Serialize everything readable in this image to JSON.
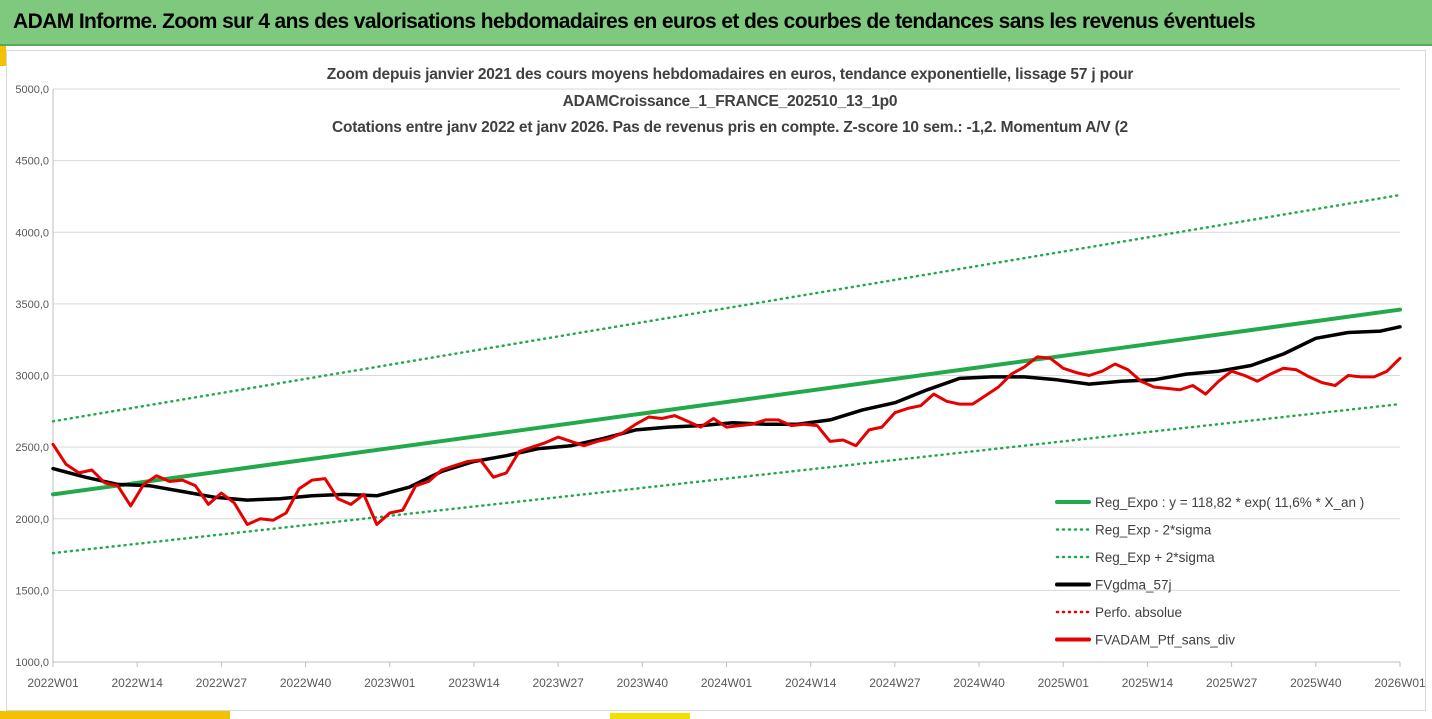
{
  "header": {
    "title": "ADAM Informe. Zoom sur 4 ans des valorisations hebdomadaires en euros et des courbes de tendances sans les revenus éventuels"
  },
  "colors": {
    "header_bg": "#7fc97f",
    "trend": "#22aa4a",
    "band": "#22aa4a",
    "smooth": "#000000",
    "perf": "#e60000",
    "price": "#e60000"
  },
  "chart_data": {
    "type": "line",
    "title_lines": [
      "Zoom depuis janvier 2021 des cours moyens hebdomadaires  en euros, tendance exponentielle, lissage 57 j pour",
      "ADAMCroissance_1_FRANCE_202510_13_1p0",
      "Cotations entre janv 2022 et janv 2026. Pas de revenus pris en compte. Z-score 10 sem.: -1,2. Momentum A/V (2"
    ],
    "x_tick_labels": [
      "2022W01",
      "2022W14",
      "2022W27",
      "2022W40",
      "2023W01",
      "2023W14",
      "2023W27",
      "2023W40",
      "2024W01",
      "2024W14",
      "2024W27",
      "2024W40",
      "2025W01",
      "2025W14",
      "2025W27",
      "2025W40",
      "2026W01"
    ],
    "x_range_weeks": [
      0,
      208
    ],
    "y_tick_labels": [
      "1000,0",
      "1500,0",
      "2000,0",
      "2500,0",
      "3000,0",
      "3500,0",
      "4000,0",
      "4500,0",
      "5000,0"
    ],
    "ylim": [
      1000,
      5000
    ],
    "grid": "horizontal",
    "legend_position": "bottom-right",
    "series": [
      {
        "name": "Reg_Expo : y = 118,82 * exp( 11,6% *  X_an )",
        "style": "solid",
        "color": "#22aa4a",
        "x": [
          0,
          208
        ],
        "y": [
          2170,
          3460
        ]
      },
      {
        "name": "Reg_Exp - 2*sigma",
        "style": "dotted",
        "color": "#22aa4a",
        "x": [
          0,
          208
        ],
        "y": [
          1760,
          2800
        ]
      },
      {
        "name": "Reg_Exp + 2*sigma",
        "style": "dotted",
        "color": "#22aa4a",
        "x": [
          0,
          208
        ],
        "y": [
          2680,
          4260
        ]
      },
      {
        "name": "FVgdma_57j",
        "style": "solid",
        "color": "#000000",
        "x": [
          0,
          5,
          10,
          15,
          20,
          25,
          30,
          35,
          40,
          45,
          50,
          55,
          60,
          65,
          70,
          75,
          80,
          85,
          90,
          95,
          100,
          105,
          110,
          115,
          120,
          125,
          130,
          135,
          140,
          145,
          150,
          155,
          160,
          165,
          170,
          175,
          180,
          185,
          190,
          195,
          200,
          205,
          208
        ],
        "y": [
          2350,
          2290,
          2240,
          2230,
          2190,
          2150,
          2130,
          2140,
          2160,
          2170,
          2160,
          2220,
          2330,
          2400,
          2440,
          2490,
          2510,
          2560,
          2620,
          2640,
          2650,
          2670,
          2660,
          2660,
          2690,
          2760,
          2810,
          2900,
          2980,
          2990,
          2990,
          2970,
          2940,
          2960,
          2970,
          3010,
          3030,
          3070,
          3150,
          3260,
          3300,
          3310,
          3340
        ]
      },
      {
        "name": "Perfo. absolue",
        "style": "dotted",
        "color": "#e60000",
        "x": [],
        "y": []
      },
      {
        "name": "FVADAM_Ptf_sans_div",
        "style": "solid",
        "color": "#e60000",
        "x": [
          0,
          2,
          4,
          6,
          8,
          10,
          12,
          14,
          16,
          18,
          20,
          22,
          24,
          26,
          28,
          30,
          32,
          34,
          36,
          38,
          40,
          42,
          44,
          46,
          48,
          50,
          52,
          54,
          56,
          58,
          60,
          62,
          64,
          66,
          68,
          70,
          72,
          74,
          76,
          78,
          80,
          82,
          84,
          86,
          88,
          90,
          92,
          94,
          96,
          98,
          100,
          102,
          104,
          106,
          108,
          110,
          112,
          114,
          116,
          118,
          120,
          122,
          124,
          126,
          128,
          130,
          132,
          134,
          136,
          138,
          140,
          142,
          144,
          146,
          148,
          150,
          152,
          154,
          156,
          158,
          160,
          162,
          164,
          166,
          168,
          170,
          172,
          174,
          176,
          178,
          180,
          182,
          184,
          186,
          188,
          190,
          192,
          194,
          196,
          198,
          200,
          202,
          204,
          206,
          208
        ],
        "y": [
          2520,
          2380,
          2320,
          2340,
          2250,
          2230,
          2090,
          2240,
          2300,
          2260,
          2270,
          2230,
          2100,
          2180,
          2110,
          1960,
          2000,
          1990,
          2040,
          2210,
          2270,
          2280,
          2140,
          2100,
          2170,
          1960,
          2040,
          2060,
          2230,
          2260,
          2340,
          2370,
          2400,
          2410,
          2290,
          2320,
          2470,
          2500,
          2530,
          2570,
          2540,
          2510,
          2540,
          2560,
          2600,
          2660,
          2710,
          2700,
          2720,
          2680,
          2640,
          2700,
          2640,
          2650,
          2660,
          2690,
          2690,
          2650,
          2660,
          2650,
          2540,
          2550,
          2510,
          2620,
          2640,
          2740,
          2770,
          2790,
          2870,
          2820,
          2800,
          2800,
          2860,
          2920,
          3010,
          3060,
          3130,
          3120,
          3050,
          3020,
          3000,
          3030,
          3080,
          3040,
          2960,
          2920,
          2910,
          2900,
          2930,
          2870,
          2960,
          3030,
          3000,
          2960,
          3010,
          3050,
          3040,
          2990,
          2950,
          2930,
          3000,
          2990,
          2990,
          3030,
          3120
        ]
      }
    ]
  },
  "legend": {
    "items": [
      {
        "label": "Reg_Expo : y = 118,82 * exp( 11,6% *  X_an )"
      },
      {
        "label": "Reg_Exp - 2*sigma"
      },
      {
        "label": "Reg_Exp + 2*sigma"
      },
      {
        "label": "FVgdma_57j"
      },
      {
        "label": "Perfo. absolue"
      },
      {
        "label": "FVADAM_Ptf_sans_div"
      }
    ]
  }
}
